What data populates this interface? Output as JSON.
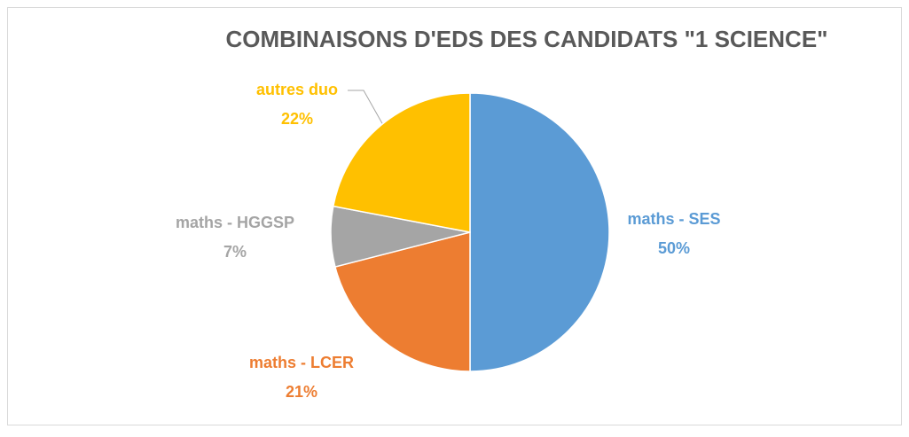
{
  "chart_data": {
    "type": "pie",
    "title": "COMBINAISONS D'EDS DES CANDIDATS \"1 SCIENCE\"",
    "categories": [
      "maths - SES",
      "maths - LCER",
      "maths - HGGSP",
      "autres duo"
    ],
    "values": [
      50,
      21,
      7,
      22
    ],
    "value_labels": [
      "50%",
      "21%",
      "7%",
      "22%"
    ],
    "colors": [
      "#5b9bd5",
      "#ed7d31",
      "#a5a5a5",
      "#ffc000"
    ]
  }
}
